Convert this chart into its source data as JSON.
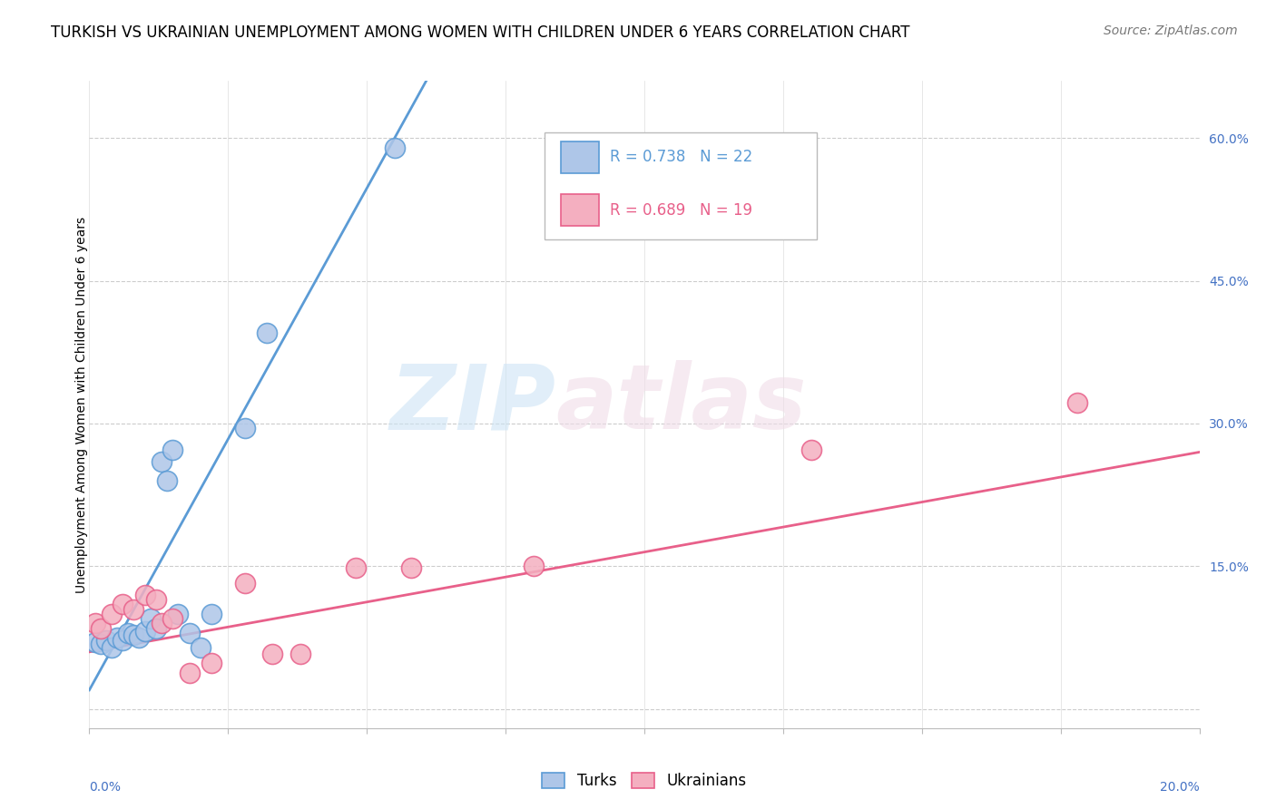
{
  "title": "TURKISH VS UKRAINIAN UNEMPLOYMENT AMONG WOMEN WITH CHILDREN UNDER 6 YEARS CORRELATION CHART",
  "source": "Source: ZipAtlas.com",
  "ylabel": "Unemployment Among Women with Children Under 6 years",
  "yticks": [
    0.0,
    0.15,
    0.3,
    0.45,
    0.6
  ],
  "ytick_labels": [
    "",
    "15.0%",
    "30.0%",
    "45.0%",
    "60.0%"
  ],
  "xlim": [
    0.0,
    0.2
  ],
  "ylim": [
    -0.02,
    0.66
  ],
  "turks_R": 0.738,
  "turks_N": 22,
  "ukrainians_R": 0.689,
  "ukrainians_N": 19,
  "turks_color": "#aec6e8",
  "ukrainians_color": "#f4afc0",
  "turks_line_color": "#5b9bd5",
  "ukrainians_line_color": "#e8608a",
  "legend_label_turks": "Turks",
  "legend_label_ukrainians": "Ukrainians",
  "turks_x": [
    0.001,
    0.002,
    0.003,
    0.004,
    0.005,
    0.006,
    0.007,
    0.008,
    0.009,
    0.01,
    0.011,
    0.012,
    0.013,
    0.014,
    0.015,
    0.016,
    0.018,
    0.02,
    0.022,
    0.028,
    0.032,
    0.055
  ],
  "turks_y": [
    0.07,
    0.068,
    0.072,
    0.065,
    0.075,
    0.072,
    0.08,
    0.078,
    0.075,
    0.082,
    0.095,
    0.085,
    0.26,
    0.24,
    0.272,
    0.1,
    0.08,
    0.065,
    0.1,
    0.295,
    0.395,
    0.59
  ],
  "ukrainians_x": [
    0.001,
    0.002,
    0.004,
    0.006,
    0.008,
    0.01,
    0.012,
    0.013,
    0.015,
    0.018,
    0.022,
    0.028,
    0.033,
    0.038,
    0.048,
    0.058,
    0.08,
    0.13,
    0.178
  ],
  "ukrainians_y": [
    0.09,
    0.085,
    0.1,
    0.11,
    0.105,
    0.12,
    0.115,
    0.09,
    0.095,
    0.038,
    0.048,
    0.132,
    0.058,
    0.058,
    0.148,
    0.148,
    0.15,
    0.272,
    0.322
  ],
  "watermark_zip": "ZIP",
  "watermark_atlas": "atlas",
  "title_fontsize": 12,
  "source_fontsize": 10,
  "axis_label_fontsize": 10,
  "tick_fontsize": 10,
  "legend_fontsize": 12
}
